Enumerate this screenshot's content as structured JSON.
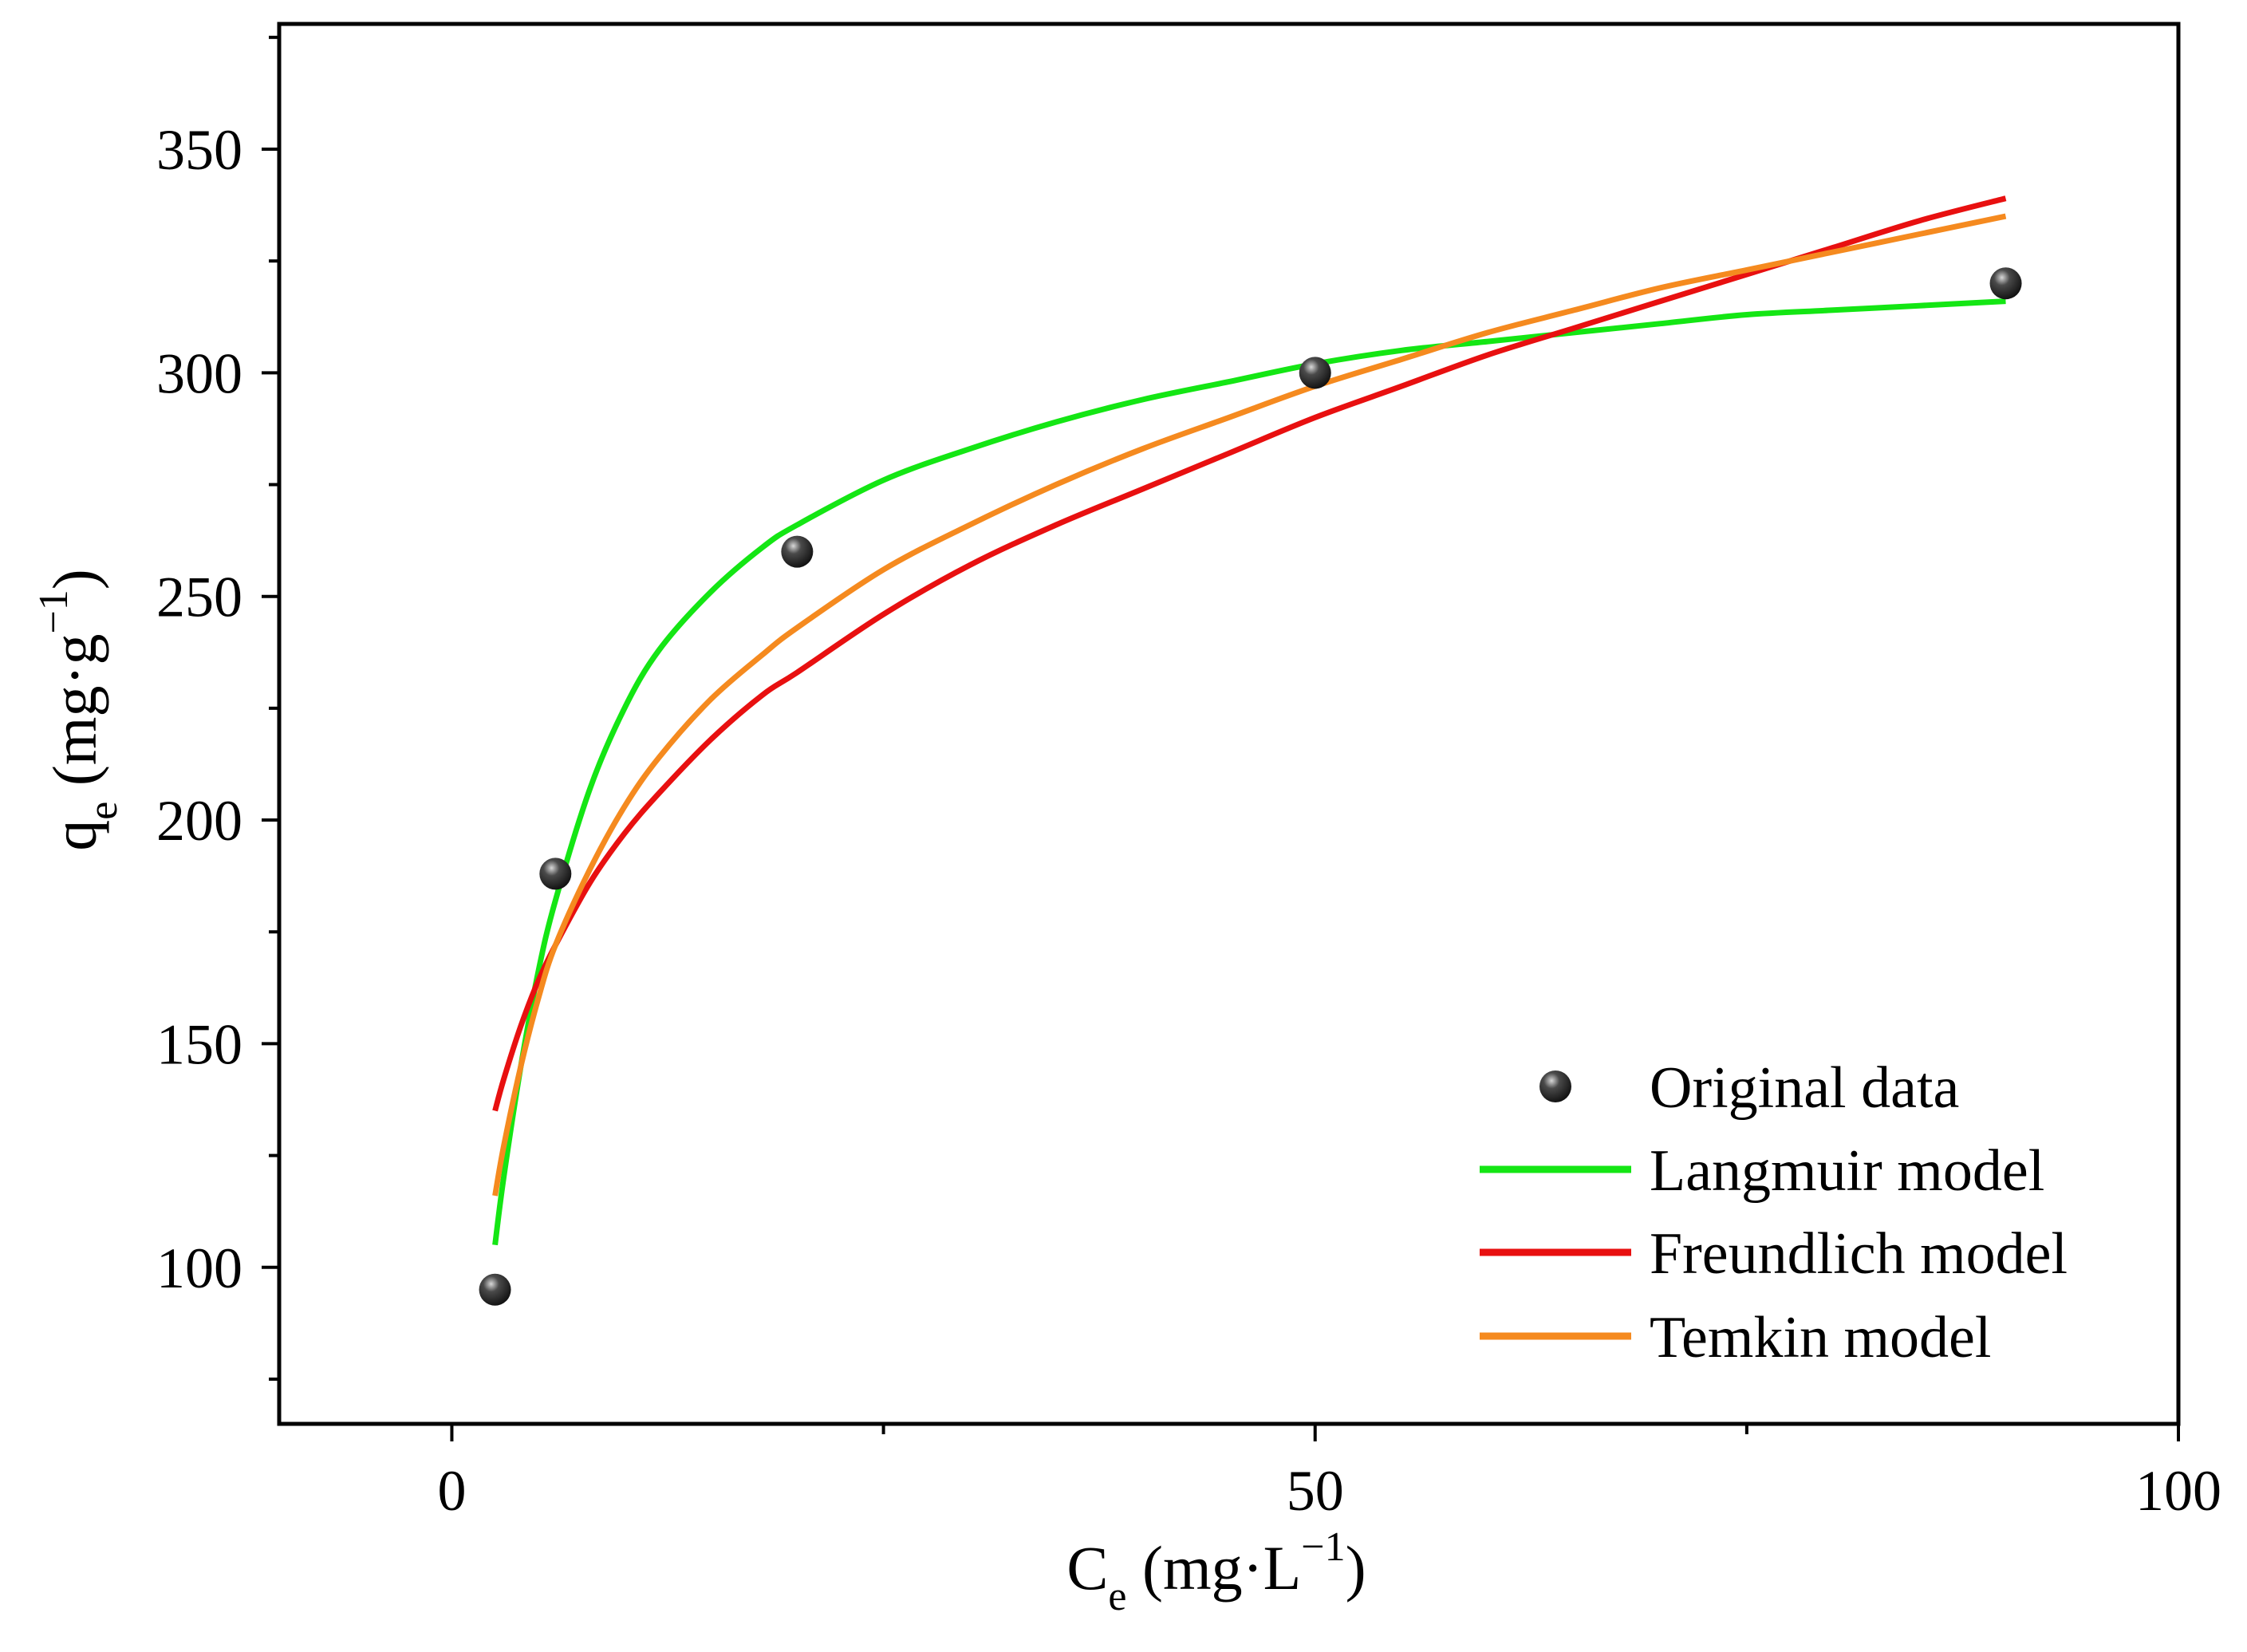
{
  "chart_data": {
    "type": "scatter",
    "xlabel": {
      "main": "C",
      "sub": "e",
      "unit_open": " (mg·L",
      "sup": "−1",
      "unit_close": ")"
    },
    "ylabel": {
      "main": "q",
      "sub": "e",
      "unit_open": " (mg·g",
      "sup": "−1",
      "unit_close": ")"
    },
    "xlim": [
      -10,
      100
    ],
    "ylim": [
      65,
      378
    ],
    "xticks": [
      0,
      50,
      100
    ],
    "xticks_minor": [
      25,
      75
    ],
    "yticks": [
      100,
      150,
      200,
      250,
      300,
      350
    ],
    "yticks_minor": [
      75,
      125,
      175,
      225,
      275,
      325,
      375
    ],
    "grid": false,
    "legend_position": "bottom-right",
    "points": {
      "name": "Original data",
      "color": "#111111",
      "x": [
        2.5,
        6,
        20,
        50,
        90
      ],
      "y": [
        95,
        188,
        260,
        300,
        320
      ]
    },
    "series": [
      {
        "name": "Langmuir model",
        "color": "#14e614",
        "x": [
          2.5,
          3,
          4,
          5,
          6,
          8,
          10,
          12,
          15,
          18,
          20,
          25,
          30,
          35,
          40,
          45,
          50,
          55,
          60,
          65,
          70,
          75,
          80,
          85,
          90
        ],
        "y": [
          105,
          120,
          145,
          166,
          182,
          207,
          225,
          238,
          251,
          261,
          266,
          276,
          283,
          289,
          294,
          298,
          302,
          305,
          307,
          309,
          311,
          313,
          314,
          315,
          316
        ]
      },
      {
        "name": "Freundlich model",
        "color": "#e81010",
        "x": [
          2.5,
          3,
          4,
          5,
          6,
          8,
          10,
          12,
          15,
          18,
          20,
          25,
          30,
          35,
          40,
          45,
          50,
          55,
          60,
          65,
          70,
          75,
          80,
          85,
          90
        ],
        "y": [
          135,
          142,
          154,
          164,
          172,
          186,
          197,
          206,
          218,
          228,
          233,
          246,
          257,
          266,
          274,
          282,
          290,
          297,
          304,
          310,
          316,
          322,
          328,
          334,
          339
        ]
      },
      {
        "name": "Temkin model",
        "color": "#f58a1f",
        "x": [
          2.5,
          3,
          4,
          5,
          6,
          8,
          10,
          12,
          15,
          18,
          20,
          25,
          30,
          35,
          40,
          45,
          50,
          55,
          60,
          65,
          70,
          75,
          80,
          85,
          90
        ],
        "y": [
          116,
          127,
          145,
          160,
          172,
          189,
          203,
          214,
          227,
          237,
          243,
          256,
          266,
          275,
          283,
          290,
          297,
          303,
          309,
          314,
          319,
          323,
          327,
          331,
          335
        ]
      }
    ]
  }
}
